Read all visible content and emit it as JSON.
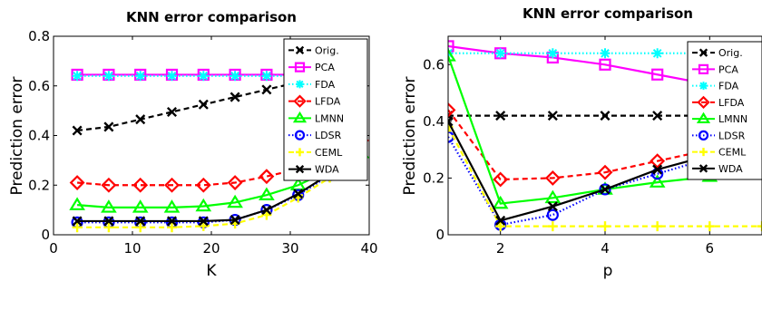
{
  "chart_data": [
    {
      "type": "line",
      "title": "KNN error comparison",
      "xlabel": "K",
      "ylabel": "Prediction error",
      "xlim": [
        0,
        40
      ],
      "ylim": [
        0,
        0.8
      ],
      "xticks": [
        0,
        10,
        20,
        30,
        40
      ],
      "yticks": [
        0,
        0.2,
        0.4,
        0.6,
        0.8
      ],
      "grid": false,
      "legend_position": "top-right",
      "x": [
        3,
        7,
        11,
        15,
        19,
        23,
        27,
        31,
        35,
        39
      ],
      "series": [
        {
          "name": "Orig.",
          "color": "#000000",
          "dash": "dashed",
          "marker": "x",
          "values": [
            0.42,
            0.435,
            0.465,
            0.495,
            0.525,
            0.555,
            0.585,
            0.615,
            0.64,
            0.66
          ]
        },
        {
          "name": "PCA",
          "color": "#ff00ff",
          "dash": "solid",
          "marker": "square",
          "values": [
            0.645,
            0.645,
            0.645,
            0.645,
            0.645,
            0.645,
            0.645,
            0.645,
            0.645,
            0.645
          ]
        },
        {
          "name": "FDA",
          "color": "#00ffff",
          "dash": "dotted",
          "marker": "asterisk",
          "values": [
            0.64,
            0.64,
            0.64,
            0.64,
            0.64,
            0.64,
            0.64,
            0.64,
            0.64,
            0.64
          ]
        },
        {
          "name": "LFDA",
          "color": "#ff0000",
          "dash": "dashed",
          "marker": "diamond",
          "values": [
            0.21,
            0.2,
            0.2,
            0.2,
            0.2,
            0.21,
            0.235,
            0.265,
            0.3,
            0.38
          ]
        },
        {
          "name": "LMNN",
          "color": "#00ff00",
          "dash": "solid",
          "marker": "triangle",
          "values": [
            0.12,
            0.11,
            0.11,
            0.11,
            0.115,
            0.13,
            0.16,
            0.2,
            0.26,
            0.33
          ]
        },
        {
          "name": "LDSR",
          "color": "#0000ff",
          "dash": "dotted",
          "marker": "circle",
          "values": [
            0.05,
            0.05,
            0.05,
            0.05,
            0.05,
            0.06,
            0.1,
            0.16,
            0.24,
            0.32
          ]
        },
        {
          "name": "CEML",
          "color": "#ffff00",
          "dash": "dashed",
          "marker": "plus",
          "values": [
            0.03,
            0.03,
            0.03,
            0.03,
            0.035,
            0.045,
            0.08,
            0.15,
            0.23,
            0.31
          ]
        },
        {
          "name": "WDA",
          "color": "#000000",
          "dash": "solid",
          "marker": "x",
          "values": [
            0.055,
            0.055,
            0.055,
            0.055,
            0.055,
            0.06,
            0.1,
            0.165,
            0.245,
            0.33
          ]
        }
      ]
    },
    {
      "type": "line",
      "title": "KNN error comparison",
      "xlabel": "p",
      "ylabel": "Prediction error",
      "xlim": [
        1,
        7
      ],
      "ylim": [
        0,
        0.7
      ],
      "xticks": [
        2,
        4,
        6
      ],
      "yticks": [
        0,
        0.2,
        0.4,
        0.6
      ],
      "grid": false,
      "legend_position": "top-right",
      "x": [
        1,
        2,
        3,
        4,
        5,
        6,
        7
      ],
      "series": [
        {
          "name": "Orig.",
          "color": "#000000",
          "dash": "dashed",
          "marker": "x",
          "values": [
            0.42,
            0.42,
            0.42,
            0.42,
            0.42,
            0.42,
            0.42
          ]
        },
        {
          "name": "PCA",
          "color": "#ff00ff",
          "dash": "solid",
          "marker": "square",
          "values": [
            0.665,
            0.64,
            0.625,
            0.6,
            0.565,
            0.53,
            0.5
          ]
        },
        {
          "name": "FDA",
          "color": "#00ffff",
          "dash": "dotted",
          "marker": "asterisk",
          "values": [
            0.64,
            0.64,
            0.64,
            0.64,
            0.64,
            0.64,
            0.64
          ]
        },
        {
          "name": "LFDA",
          "color": "#ff0000",
          "dash": "dashed",
          "marker": "diamond",
          "values": [
            0.44,
            0.195,
            0.2,
            0.22,
            0.26,
            0.3,
            0.33
          ]
        },
        {
          "name": "LMNN",
          "color": "#00ff00",
          "dash": "solid",
          "marker": "triangle",
          "values": [
            0.63,
            0.11,
            0.13,
            0.16,
            0.185,
            0.205,
            0.22
          ]
        },
        {
          "name": "LDSR",
          "color": "#0000ff",
          "dash": "dotted",
          "marker": "circle",
          "values": [
            0.345,
            0.035,
            0.07,
            0.16,
            0.215,
            0.27,
            0.3
          ]
        },
        {
          "name": "CEML",
          "color": "#ffff00",
          "dash": "dashed",
          "marker": "plus",
          "values": [
            0.38,
            0.03,
            0.03,
            0.03,
            0.03,
            0.03,
            0.03
          ]
        },
        {
          "name": "WDA",
          "color": "#000000",
          "dash": "solid",
          "marker": "x",
          "values": [
            0.4,
            0.05,
            0.1,
            0.16,
            0.23,
            0.28,
            0.32
          ]
        }
      ]
    }
  ]
}
